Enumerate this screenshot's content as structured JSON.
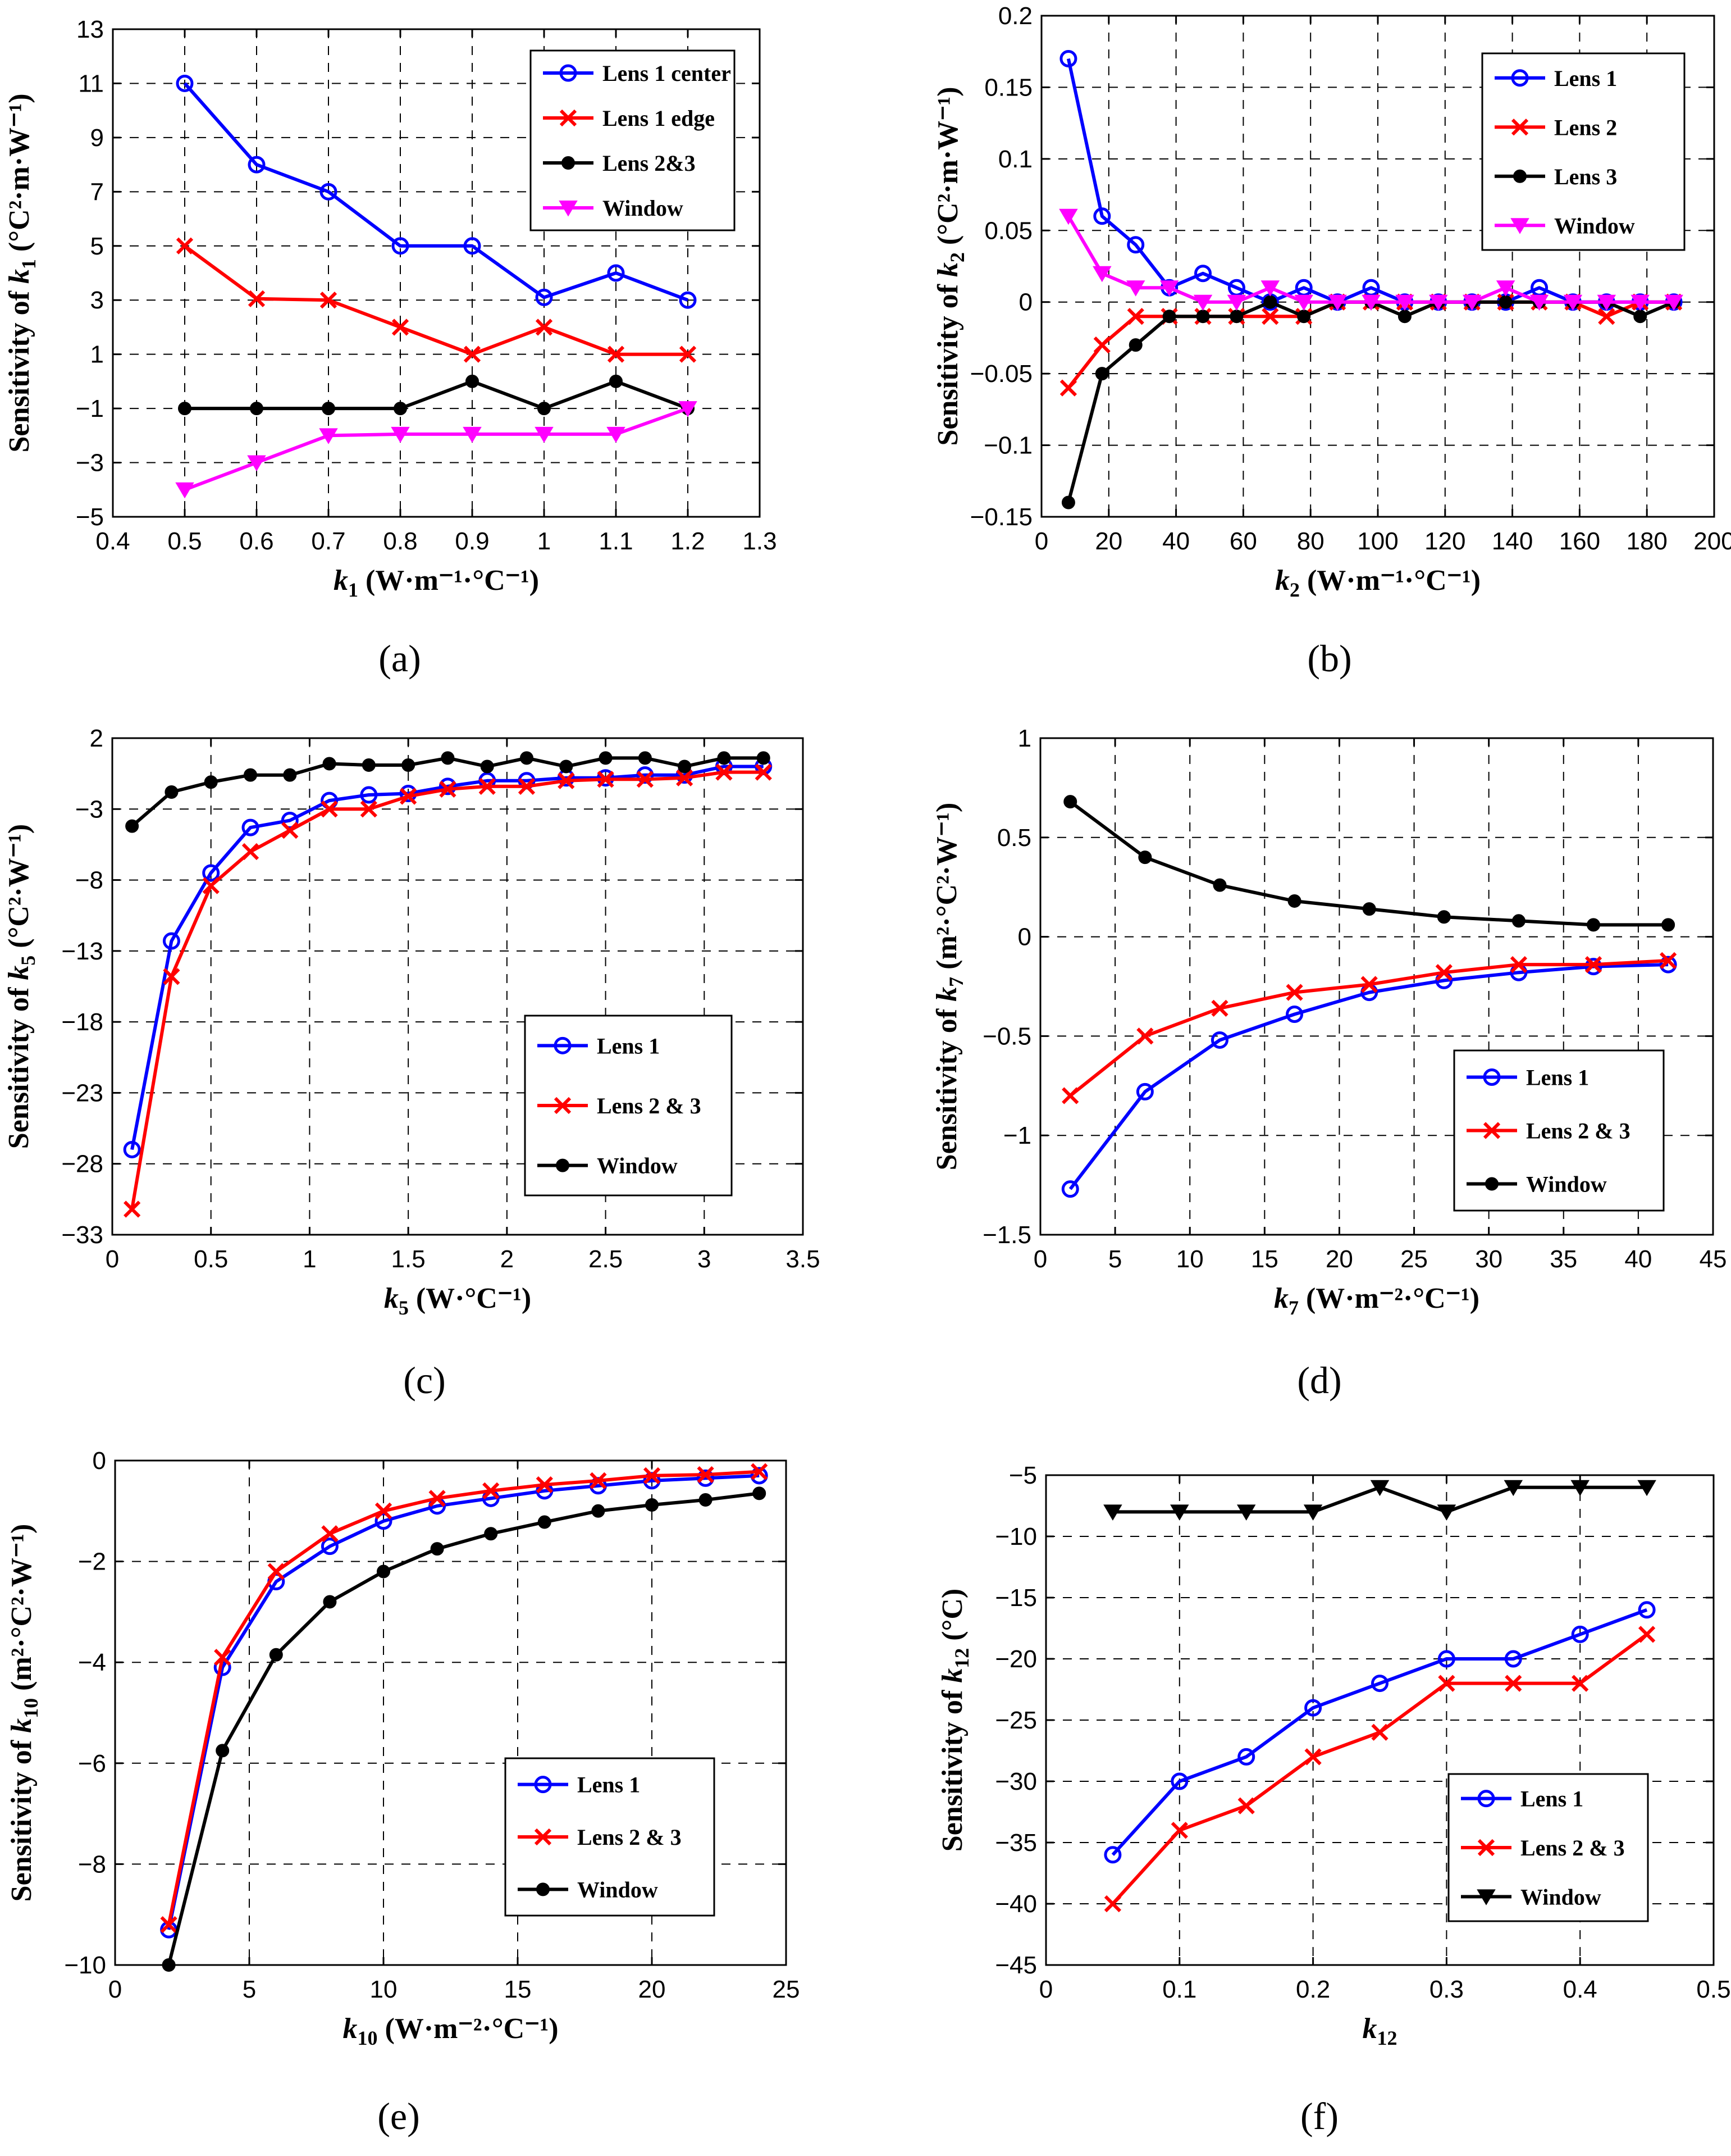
{
  "colors": {
    "blue": "#0000ff",
    "red": "#ff0000",
    "black": "#000000",
    "magenta": "#ff00ff"
  },
  "chart_data": [
    {
      "id": "a",
      "type": "line",
      "panel_label": "(a)",
      "xlabel": "k1 (W·m−1·°C−1)",
      "xlabel_parts": {
        "sym": "k",
        "sub": "1",
        "unit": " (W·m⁻¹·°C⁻¹)"
      },
      "ylabel": "Sensitivity of k1 (°C2·m·W−1)",
      "ylabel_parts": {
        "pre": "Sensitivity of ",
        "sym": "k",
        "sub": "1",
        "unit": " (°C²·m·W⁻¹)"
      },
      "xlim": [
        0.4,
        1.3
      ],
      "ylim": [
        -5,
        13
      ],
      "xticks": [
        0.4,
        0.5,
        0.6,
        0.7,
        0.8,
        0.9,
        1,
        1.1,
        1.2,
        1.3
      ],
      "yticks": [
        -5,
        -3,
        -1,
        1,
        3,
        5,
        7,
        9,
        11,
        13
      ],
      "series": [
        {
          "name": "Lens 1 center",
          "color": "#0000ff",
          "marker": "circle",
          "x": [
            0.5,
            0.6,
            0.7,
            0.8,
            0.9,
            1.0,
            1.1,
            1.2
          ],
          "values": [
            11,
            8,
            7,
            5,
            5,
            3.1,
            4,
            3
          ]
        },
        {
          "name": "Lens 1 edge",
          "color": "#ff0000",
          "marker": "x",
          "x": [
            0.5,
            0.6,
            0.7,
            0.8,
            0.9,
            1.0,
            1.1,
            1.2
          ],
          "values": [
            5,
            3.05,
            3,
            2,
            1,
            2,
            1,
            1
          ]
        },
        {
          "name": "Lens 2&3",
          "color": "#000000",
          "marker": "dot",
          "x": [
            0.5,
            0.6,
            0.7,
            0.8,
            0.9,
            1.0,
            1.1,
            1.2
          ],
          "values": [
            -1,
            -1,
            -1,
            -1,
            0,
            -1,
            0,
            -1
          ]
        },
        {
          "name": "Window",
          "color": "#ff00ff",
          "marker": "triangle-down",
          "x": [
            0.5,
            0.6,
            0.7,
            0.8,
            0.9,
            1.0,
            1.1,
            1.2
          ],
          "values": [
            -4,
            -3,
            -2,
            -1.95,
            -1.95,
            -1.95,
            -1.95,
            -1
          ]
        }
      ],
      "legend": "top-right"
    },
    {
      "id": "b",
      "type": "line",
      "panel_label": "(b)",
      "xlabel": "k2 (W·m−1·°C−1)",
      "xlabel_parts": {
        "sym": "k",
        "sub": "2",
        "unit": " (W·m⁻¹·°C⁻¹)"
      },
      "ylabel": "Sensitivity of k2 (°C2·m·W−1)",
      "ylabel_parts": {
        "pre": "Sensitivity of ",
        "sym": "k",
        "sub": "2",
        "unit": " (°C²·m·W⁻¹)"
      },
      "xlim": [
        0,
        200
      ],
      "ylim": [
        -0.15,
        0.2
      ],
      "xticks": [
        0,
        20,
        40,
        60,
        80,
        100,
        120,
        140,
        160,
        180,
        200
      ],
      "yticks": [
        -0.15,
        -0.1,
        -0.05,
        0,
        0.05,
        0.1,
        0.15,
        0.2
      ],
      "series": [
        {
          "name": "Lens 1",
          "color": "#0000ff",
          "marker": "circle",
          "x": [
            8,
            18,
            28,
            38,
            48,
            58,
            68,
            78,
            88,
            98,
            108,
            118,
            128,
            138,
            148,
            158,
            168,
            178,
            188
          ],
          "values": [
            0.17,
            0.06,
            0.04,
            0.01,
            0.02,
            0.01,
            0,
            0.01,
            0,
            0.01,
            0,
            0,
            0,
            0,
            0.01,
            0,
            0,
            0,
            0
          ]
        },
        {
          "name": "Lens 2",
          "color": "#ff0000",
          "marker": "x",
          "x": [
            8,
            18,
            28,
            38,
            48,
            58,
            68,
            78,
            88,
            98,
            108,
            118,
            128,
            138,
            148,
            158,
            168,
            178,
            188
          ],
          "values": [
            -0.06,
            -0.03,
            -0.01,
            -0.01,
            -0.01,
            -0.01,
            -0.01,
            -0.01,
            0,
            0,
            0,
            0,
            0,
            0,
            0,
            0,
            -0.01,
            0,
            0
          ]
        },
        {
          "name": "Lens 3",
          "color": "#000000",
          "marker": "dot",
          "x": [
            8,
            18,
            28,
            38,
            48,
            58,
            68,
            78,
            88,
            98,
            108,
            118,
            128,
            138,
            148,
            158,
            168,
            178,
            188
          ],
          "values": [
            -0.14,
            -0.05,
            -0.03,
            -0.01,
            -0.01,
            -0.01,
            0,
            -0.01,
            0,
            0,
            -0.01,
            0,
            0,
            0,
            0,
            0,
            0,
            -0.01,
            0
          ]
        },
        {
          "name": "Window",
          "color": "#ff00ff",
          "marker": "triangle-down",
          "x": [
            8,
            18,
            28,
            38,
            48,
            58,
            68,
            78,
            88,
            98,
            108,
            118,
            128,
            138,
            148,
            158,
            168,
            178,
            188
          ],
          "values": [
            0.06,
            0.02,
            0.01,
            0.01,
            0,
            0,
            0.01,
            0,
            0,
            0,
            0,
            0,
            0,
            0.01,
            0,
            0,
            0,
            0,
            0
          ]
        }
      ],
      "legend": "top-right"
    },
    {
      "id": "c",
      "type": "line",
      "panel_label": "(c)",
      "xlabel": "k5 (W·°C−1)",
      "xlabel_parts": {
        "sym": "k",
        "sub": "5",
        "unit": " (W·°C⁻¹)"
      },
      "ylabel": "Sensitivity of k5 (°C2·W−1)",
      "ylabel_parts": {
        "pre": "Sensitivity of ",
        "sym": "k",
        "sub": "5",
        "unit": "  (°C²·W⁻¹)"
      },
      "xlim": [
        0,
        3.5
      ],
      "ylim": [
        -33,
        2
      ],
      "xticks": [
        0,
        0.5,
        1,
        1.5,
        2,
        2.5,
        3,
        3.5
      ],
      "yticks": [
        -33,
        -28,
        -23,
        -18,
        -13,
        -8,
        -3,
        2
      ],
      "series": [
        {
          "name": "Lens 1",
          "color": "#0000ff",
          "marker": "circle",
          "x": [
            0.1,
            0.3,
            0.5,
            0.7,
            0.9,
            1.1,
            1.3,
            1.5,
            1.7,
            1.9,
            2.1,
            2.3,
            2.5,
            2.7,
            2.9,
            3.1,
            3.3
          ],
          "values": [
            -27,
            -12.3,
            -7.5,
            -4.3,
            -3.8,
            -2.4,
            -2,
            -1.9,
            -1.4,
            -1,
            -1,
            -0.8,
            -0.8,
            -0.6,
            -0.6,
            0,
            0
          ]
        },
        {
          "name": "Lens 2 & 3",
          "color": "#ff0000",
          "marker": "x",
          "x": [
            0.1,
            0.3,
            0.5,
            0.7,
            0.9,
            1.1,
            1.3,
            1.5,
            1.7,
            1.9,
            2.1,
            2.3,
            2.5,
            2.7,
            2.9,
            3.1,
            3.3
          ],
          "values": [
            -31.2,
            -14.8,
            -8.4,
            -6,
            -4.5,
            -3,
            -3,
            -2.1,
            -1.6,
            -1.4,
            -1.4,
            -1,
            -0.9,
            -0.9,
            -0.8,
            -0.4,
            -0.4
          ]
        },
        {
          "name": "Window",
          "color": "#000000",
          "marker": "dot",
          "x": [
            0.1,
            0.3,
            0.5,
            0.7,
            0.9,
            1.1,
            1.3,
            1.5,
            1.7,
            1.9,
            2.1,
            2.3,
            2.5,
            2.7,
            2.9,
            3.1,
            3.3
          ],
          "values": [
            -4.2,
            -1.8,
            -1.1,
            -0.6,
            -0.6,
            0.2,
            0.1,
            0.1,
            0.6,
            0,
            0.6,
            0,
            0.6,
            0.6,
            0,
            0.6,
            0.6
          ]
        }
      ],
      "legend": "bottom-right"
    },
    {
      "id": "d",
      "type": "line",
      "panel_label": "(d)",
      "xlabel": "k7 (W·m−2·°C−1)",
      "xlabel_parts": {
        "sym": "k",
        "sub": "7",
        "unit": " (W·m⁻²·°C⁻¹)"
      },
      "ylabel": "Sensitivity of k7 (m2·°C2·W−1)",
      "ylabel_parts": {
        "pre": "Sensitivity of ",
        "sym": "k",
        "sub": "7",
        "unit": "  (m²·°C²·W⁻¹)"
      },
      "xlim": [
        0,
        45
      ],
      "ylim": [
        -1.5,
        1
      ],
      "xticks": [
        0,
        5,
        10,
        15,
        20,
        25,
        30,
        35,
        40,
        45
      ],
      "yticks": [
        -1.5,
        -1,
        -0.5,
        0,
        0.5,
        1
      ],
      "series": [
        {
          "name": "Lens 1",
          "color": "#0000ff",
          "marker": "circle",
          "x": [
            2,
            7,
            12,
            17,
            22,
            27,
            32,
            37,
            42
          ],
          "values": [
            -1.27,
            -0.78,
            -0.52,
            -0.39,
            -0.28,
            -0.22,
            -0.18,
            -0.15,
            -0.14
          ]
        },
        {
          "name": "Lens 2 & 3",
          "color": "#ff0000",
          "marker": "x",
          "x": [
            2,
            7,
            12,
            17,
            22,
            27,
            32,
            37,
            42
          ],
          "values": [
            -0.8,
            -0.5,
            -0.36,
            -0.28,
            -0.24,
            -0.18,
            -0.14,
            -0.14,
            -0.12
          ]
        },
        {
          "name": "Window",
          "color": "#000000",
          "marker": "dot",
          "x": [
            2,
            7,
            12,
            17,
            22,
            27,
            32,
            37,
            42
          ],
          "values": [
            0.68,
            0.4,
            0.26,
            0.18,
            0.14,
            0.1,
            0.08,
            0.06,
            0.06
          ]
        }
      ],
      "legend": "bottom-right"
    },
    {
      "id": "e",
      "type": "line",
      "panel_label": "(e)",
      "xlabel": "k10 (W·m−2·°C−1)",
      "xlabel_parts": {
        "sym": "k",
        "sub": "10",
        "unit": " (W·m⁻²·°C⁻¹)"
      },
      "ylabel": "Sensitivity of k10 (m2·°C2·W−1)",
      "ylabel_parts": {
        "pre": "Sensitivity of ",
        "sym": "k",
        "sub": "10",
        "unit": "  (m²·°C²·W⁻¹)"
      },
      "xlim": [
        0,
        25
      ],
      "ylim": [
        -10,
        0
      ],
      "xticks": [
        0,
        5,
        10,
        15,
        20,
        25
      ],
      "yticks": [
        -10,
        -8,
        -6,
        -4,
        -2,
        0
      ],
      "series": [
        {
          "name": "Lens 1",
          "color": "#0000ff",
          "marker": "circle",
          "x": [
            2,
            4,
            6,
            8,
            10,
            12,
            14,
            16,
            18,
            20,
            22,
            24
          ],
          "values": [
            -9.3,
            -4.1,
            -2.4,
            -1.7,
            -1.2,
            -0.9,
            -0.75,
            -0.6,
            -0.5,
            -0.4,
            -0.35,
            -0.3
          ]
        },
        {
          "name": "Lens 2 & 3",
          "color": "#ff0000",
          "marker": "x",
          "x": [
            2,
            4,
            6,
            8,
            10,
            12,
            14,
            16,
            18,
            20,
            22,
            24
          ],
          "values": [
            -9.2,
            -3.9,
            -2.2,
            -1.45,
            -1,
            -0.75,
            -0.6,
            -0.48,
            -0.4,
            -0.3,
            -0.28,
            -0.22
          ]
        },
        {
          "name": "Window",
          "color": "#000000",
          "marker": "dot",
          "x": [
            2,
            4,
            6,
            8,
            10,
            12,
            14,
            16,
            18,
            20,
            22,
            24
          ],
          "values": [
            -10,
            -5.75,
            -3.85,
            -2.8,
            -2.2,
            -1.75,
            -1.45,
            -1.22,
            -1,
            -0.88,
            -0.78,
            -0.65
          ]
        }
      ],
      "legend": "bottom-right"
    },
    {
      "id": "f",
      "type": "line",
      "panel_label": "(f)",
      "xlabel": "k12",
      "xlabel_parts": {
        "sym": "k",
        "sub": "12",
        "unit": ""
      },
      "ylabel": "Sensitivity of k12 (°C)",
      "ylabel_parts": {
        "pre": "Sensitivity of ",
        "sym": "k",
        "sub": "12",
        "unit": " (°C)"
      },
      "xlim": [
        0,
        0.5
      ],
      "ylim": [
        -45,
        -5
      ],
      "xticks": [
        0,
        0.1,
        0.2,
        0.3,
        0.4,
        0.5
      ],
      "yticks": [
        -45,
        -40,
        -35,
        -30,
        -25,
        -20,
        -15,
        -10,
        -5
      ],
      "series": [
        {
          "name": "Lens 1",
          "color": "#0000ff",
          "marker": "circle",
          "x": [
            0.05,
            0.1,
            0.15,
            0.2,
            0.25,
            0.3,
            0.35,
            0.4,
            0.45
          ],
          "values": [
            -36,
            -30,
            -28,
            -24,
            -22,
            -20,
            -20,
            -18,
            -16
          ]
        },
        {
          "name": "Lens 2 & 3",
          "color": "#ff0000",
          "marker": "x",
          "x": [
            0.05,
            0.1,
            0.15,
            0.2,
            0.25,
            0.3,
            0.35,
            0.4,
            0.45
          ],
          "values": [
            -40,
            -34,
            -32,
            -28,
            -26,
            -22,
            -22,
            -22,
            -18
          ]
        },
        {
          "name": "Window",
          "color": "#000000",
          "marker": "triangle-down",
          "x": [
            0.05,
            0.1,
            0.15,
            0.2,
            0.25,
            0.3,
            0.35,
            0.4,
            0.45
          ],
          "values": [
            -8,
            -8,
            -8,
            -8,
            -6,
            -8,
            -6,
            -6,
            -6
          ]
        }
      ],
      "legend": "bottom-right"
    }
  ]
}
